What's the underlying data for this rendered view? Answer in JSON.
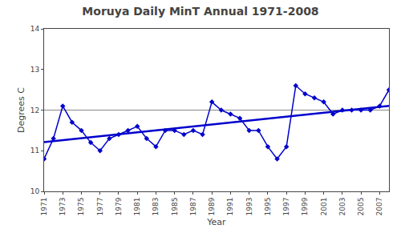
{
  "chart_data": {
    "type": "line",
    "title": "Moruya Daily MinT Annual 1971-2008",
    "x_label": "Year",
    "y_label": "Degrees C",
    "x": [
      1971,
      1972,
      1973,
      1974,
      1975,
      1976,
      1977,
      1978,
      1979,
      1980,
      1981,
      1982,
      1983,
      1984,
      1985,
      1986,
      1987,
      1988,
      1989,
      1990,
      1991,
      1992,
      1993,
      1994,
      1995,
      1996,
      1997,
      1998,
      1999,
      2000,
      2001,
      2002,
      2003,
      2004,
      2005,
      2006,
      2007,
      2008
    ],
    "values": [
      10.8,
      11.3,
      12.1,
      11.7,
      11.5,
      11.2,
      11.0,
      11.3,
      11.4,
      11.5,
      11.6,
      11.3,
      11.1,
      11.5,
      11.5,
      11.4,
      11.5,
      11.4,
      12.2,
      12.0,
      11.9,
      11.8,
      11.5,
      11.5,
      11.1,
      10.8,
      11.1,
      12.6,
      12.4,
      12.3,
      12.2,
      11.9,
      12.0,
      12.0,
      12.0,
      12.0,
      12.1,
      12.5
    ],
    "color": "#0000CC",
    "marker": "diamond",
    "trend": {
      "x": [
        1971,
        2008
      ],
      "values": [
        11.2097,
        12.1061
      ],
      "color": "#0000CC"
    },
    "mean_line": {
      "value": 12.0,
      "color": "#888888"
    },
    "xlim": [
      1971,
      2008
    ],
    "xticks": [
      1971,
      1973,
      1975,
      1977,
      1979,
      1981,
      1983,
      1985,
      1987,
      1989,
      1991,
      1993,
      1995,
      1997,
      1999,
      2001,
      2003,
      2005,
      2007
    ],
    "ylim": [
      10,
      14
    ],
    "yticks": [
      10,
      11,
      12,
      13,
      14
    ],
    "grid": false
  }
}
